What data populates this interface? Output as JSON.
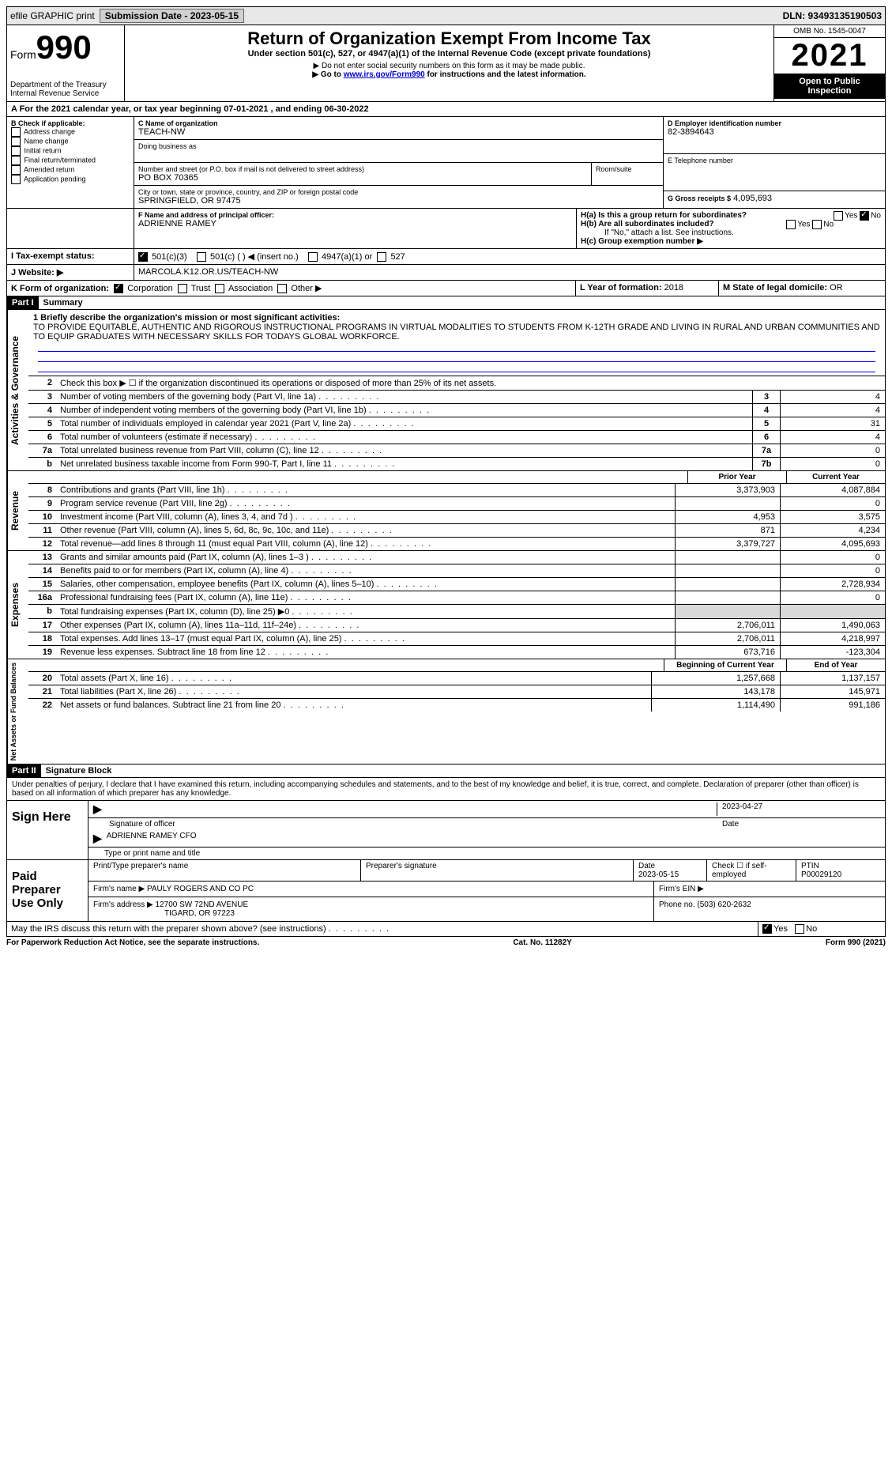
{
  "topbar": {
    "efile": "efile GRAPHIC print",
    "subdate_lbl": "Submission Date - 2023-05-15",
    "dln": "DLN: 93493135190503"
  },
  "header": {
    "form_label": "Form",
    "form_num": "990",
    "title": "Return of Organization Exempt From Income Tax",
    "subtitle": "Under section 501(c), 527, or 4947(a)(1) of the Internal Revenue Code (except private foundations)",
    "note1": "▶ Do not enter social security numbers on this form as it may be made public.",
    "note2_pre": "▶ Go to ",
    "note2_link": "www.irs.gov/Form990",
    "note2_post": " for instructions and the latest information.",
    "dept": "Department of the Treasury\nInternal Revenue Service",
    "omb": "OMB No. 1545-0047",
    "year": "2021",
    "open": "Open to Public Inspection"
  },
  "A": {
    "text": "A For the 2021 calendar year, or tax year beginning 07-01-2021   , and ending 06-30-2022"
  },
  "B": {
    "label": "B Check if applicable:",
    "opts": [
      "Address change",
      "Name change",
      "Initial return",
      "Final return/terminated",
      "Amended return",
      "Application pending"
    ]
  },
  "C": {
    "name_lbl": "C Name of organization",
    "name": "TEACH-NW",
    "dba_lbl": "Doing business as",
    "addr_lbl": "Number and street (or P.O. box if mail is not delivered to street address)",
    "room_lbl": "Room/suite",
    "addr": "PO BOX 70365",
    "city_lbl": "City or town, state or province, country, and ZIP or foreign postal code",
    "city": "SPRINGFIELD, OR  97475"
  },
  "D": {
    "lbl": "D Employer identification number",
    "val": "82-3894643"
  },
  "E": {
    "lbl": "E Telephone number",
    "val": ""
  },
  "G": {
    "lbl": "G Gross receipts $",
    "val": "4,095,693"
  },
  "F": {
    "lbl": "F  Name and address of principal officer:",
    "val": "ADRIENNE RAMEY"
  },
  "H": {
    "a": "H(a)  Is this a group return for subordinates?",
    "b": "H(b)  Are all subordinates included?",
    "b_note": "If \"No,\" attach a list. See instructions.",
    "c": "H(c)  Group exemption number ▶",
    "yes": "Yes",
    "no": "No"
  },
  "I": {
    "lbl": "I   Tax-exempt status:",
    "o1": "501(c)(3)",
    "o2": "501(c) (  ) ◀ (insert no.)",
    "o3": "4947(a)(1) or",
    "o4": "527"
  },
  "J": {
    "lbl": "J   Website: ▶",
    "val": "MARCOLA.K12.OR.US/TEACH-NW"
  },
  "K": {
    "lbl": "K Form of organization:",
    "o1": "Corporation",
    "o2": "Trust",
    "o3": "Association",
    "o4": "Other ▶"
  },
  "L": {
    "lbl": "L Year of formation:",
    "val": "2018"
  },
  "M": {
    "lbl": "M State of legal domicile:",
    "val": "OR"
  },
  "part1": {
    "hdr": "Part I",
    "title": "Summary",
    "l1_lbl": "1  Briefly describe the organization's mission or most significant activities:",
    "l1_txt": "TO PROVIDE EQUITABLE, AUTHENTIC AND RIGOROUS INSTRUCTIONAL PROGRAMS IN VIRTUAL MODALITIES TO STUDENTS FROM K-12TH GRADE AND LIVING IN RURAL AND URBAN COMMUNITIES AND TO EQUIP GRADUATES WITH NECESSARY SKILLS FOR TODAYS GLOBAL WORKFORCE.",
    "l2": "Check this box ▶ ☐  if the organization discontinued its operations or disposed of more than 25% of its net assets.",
    "lines_a": [
      {
        "n": "3",
        "d": "Number of voting members of the governing body (Part VI, line 1a)",
        "box": "3",
        "v": "4"
      },
      {
        "n": "4",
        "d": "Number of independent voting members of the governing body (Part VI, line 1b)",
        "box": "4",
        "v": "4"
      },
      {
        "n": "5",
        "d": "Total number of individuals employed in calendar year 2021 (Part V, line 2a)",
        "box": "5",
        "v": "31"
      },
      {
        "n": "6",
        "d": "Total number of volunteers (estimate if necessary)",
        "box": "6",
        "v": "4"
      },
      {
        "n": "7a",
        "d": "Total unrelated business revenue from Part VIII, column (C), line 12",
        "box": "7a",
        "v": "0"
      },
      {
        "n": "b",
        "d": "Net unrelated business taxable income from Form 990-T, Part I, line 11",
        "box": "7b",
        "v": "0"
      }
    ],
    "prior": "Prior Year",
    "current": "Current Year",
    "rev": [
      {
        "n": "8",
        "d": "Contributions and grants (Part VIII, line 1h)",
        "p": "3,373,903",
        "c": "4,087,884"
      },
      {
        "n": "9",
        "d": "Program service revenue (Part VIII, line 2g)",
        "p": "",
        "c": "0"
      },
      {
        "n": "10",
        "d": "Investment income (Part VIII, column (A), lines 3, 4, and 7d )",
        "p": "4,953",
        "c": "3,575"
      },
      {
        "n": "11",
        "d": "Other revenue (Part VIII, column (A), lines 5, 6d, 8c, 9c, 10c, and 11e)",
        "p": "871",
        "c": "4,234"
      },
      {
        "n": "12",
        "d": "Total revenue—add lines 8 through 11 (must equal Part VIII, column (A), line 12)",
        "p": "3,379,727",
        "c": "4,095,693"
      }
    ],
    "exp": [
      {
        "n": "13",
        "d": "Grants and similar amounts paid (Part IX, column (A), lines 1–3 )",
        "p": "",
        "c": "0"
      },
      {
        "n": "14",
        "d": "Benefits paid to or for members (Part IX, column (A), line 4)",
        "p": "",
        "c": "0"
      },
      {
        "n": "15",
        "d": "Salaries, other compensation, employee benefits (Part IX, column (A), lines 5–10)",
        "p": "",
        "c": "2,728,934"
      },
      {
        "n": "16a",
        "d": "Professional fundraising fees (Part IX, column (A), line 11e)",
        "p": "",
        "c": "0"
      },
      {
        "n": "b",
        "d": "Total fundraising expenses (Part IX, column (D), line 25) ▶0",
        "p": "shade",
        "c": "shade"
      },
      {
        "n": "17",
        "d": "Other expenses (Part IX, column (A), lines 11a–11d, 11f–24e)",
        "p": "2,706,011",
        "c": "1,490,063"
      },
      {
        "n": "18",
        "d": "Total expenses. Add lines 13–17 (must equal Part IX, column (A), line 25)",
        "p": "2,706,011",
        "c": "4,218,997"
      },
      {
        "n": "19",
        "d": "Revenue less expenses. Subtract line 18 from line 12",
        "p": "673,716",
        "c": "-123,304"
      }
    ],
    "boy": "Beginning of Current Year",
    "eoy": "End of Year",
    "net": [
      {
        "n": "20",
        "d": "Total assets (Part X, line 16)",
        "p": "1,257,668",
        "c": "1,137,157"
      },
      {
        "n": "21",
        "d": "Total liabilities (Part X, line 26)",
        "p": "143,178",
        "c": "145,971"
      },
      {
        "n": "22",
        "d": "Net assets or fund balances. Subtract line 21 from line 20",
        "p": "1,114,490",
        "c": "991,186"
      }
    ]
  },
  "vlabels": {
    "gov": "Activities & Governance",
    "rev": "Revenue",
    "exp": "Expenses",
    "net": "Net Assets or Fund Balances"
  },
  "part2": {
    "hdr": "Part II",
    "title": "Signature Block",
    "penalty": "Under penalties of perjury, I declare that I have examined this return, including accompanying schedules and statements, and to the best of my knowledge and belief, it is true, correct, and complete. Declaration of preparer (other than officer) is based on all information of which preparer has any knowledge."
  },
  "sign": {
    "here": "Sign Here",
    "sig_of": "Signature of officer",
    "date": "Date",
    "date_val": "2023-04-27",
    "name": "ADRIENNE RAMEY CFO",
    "name_lbl": "Type or print name and title"
  },
  "paid": {
    "lbl": "Paid Preparer Use Only",
    "col1": "Print/Type preparer's name",
    "col2": "Preparer's signature",
    "col3": "Date",
    "date": "2023-05-15",
    "chk": "Check ☐ if self-employed",
    "ptin_lbl": "PTIN",
    "ptin": "P00029120",
    "firm_lbl": "Firm's name    ▶",
    "firm": "PAULY ROGERS AND CO PC",
    "ein_lbl": "Firm's EIN ▶",
    "addr_lbl": "Firm's address ▶",
    "addr1": "12700 SW 72ND AVENUE",
    "addr2": "TIGARD, OR  97223",
    "phone_lbl": "Phone no.",
    "phone": "(503) 620-2632"
  },
  "may": {
    "q": "May the IRS discuss this return with the preparer shown above? (see instructions)",
    "yes": "Yes",
    "no": "No"
  },
  "footer": {
    "left": "For Paperwork Reduction Act Notice, see the separate instructions.",
    "mid": "Cat. No. 11282Y",
    "right": "Form 990 (2021)"
  }
}
